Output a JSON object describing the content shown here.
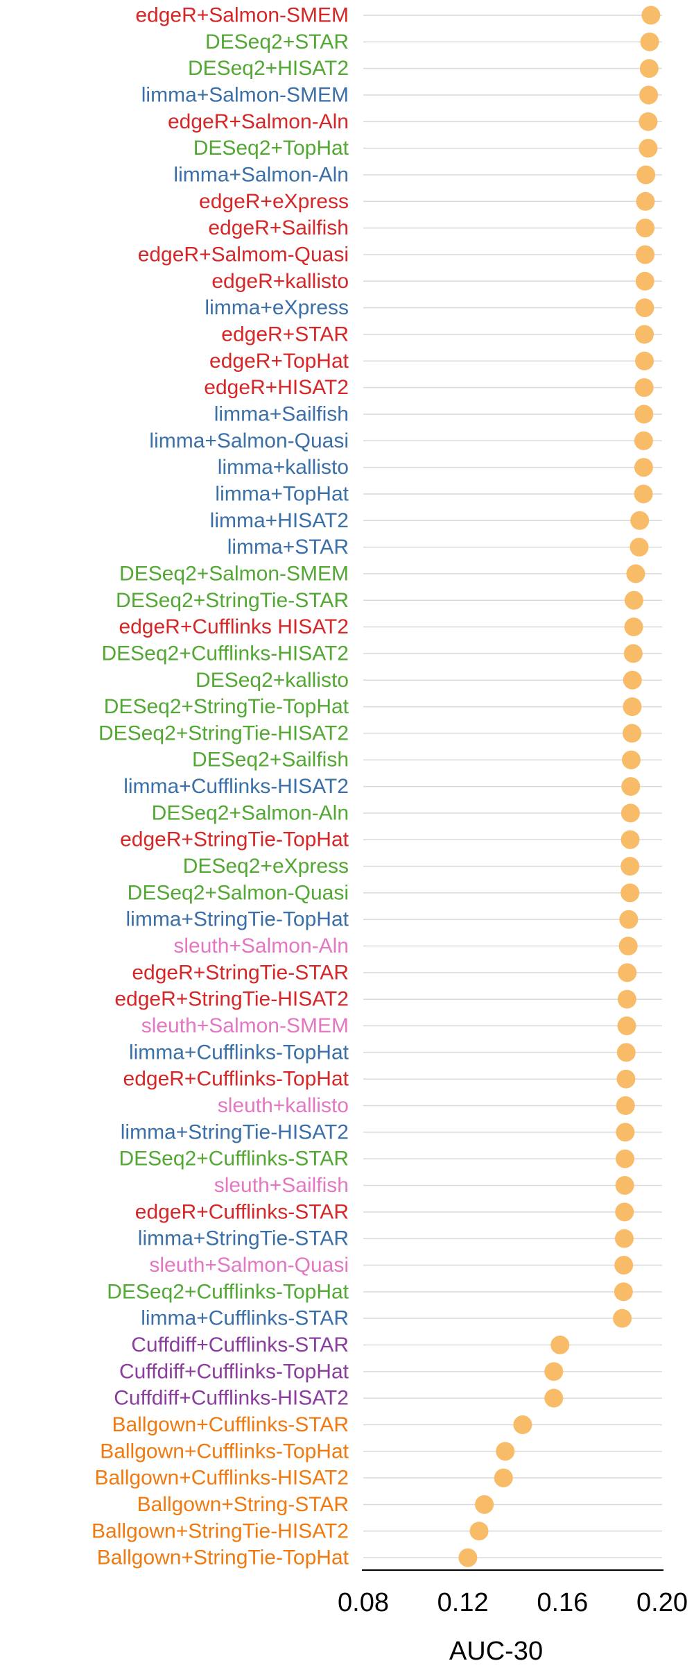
{
  "chart_data": {
    "type": "scatter",
    "title": "",
    "xlabel": "AUC-30",
    "ylabel": "",
    "xlim": [
      0.08,
      0.2
    ],
    "xticks": [
      "0.08",
      "0.12",
      "0.16",
      "0.20"
    ],
    "grid": "horizontal",
    "marker_color": "#F8BB68",
    "group_colors": {
      "edgeR": "#D62728",
      "DESeq2": "#52A833",
      "limma": "#3A6FA8",
      "sleuth": "#E377C2",
      "Cuffdiff": "#8A3D9C",
      "Ballgown": "#F07A10"
    },
    "points": [
      {
        "label": "edgeR+Salmon-SMEM",
        "group": "edgeR",
        "value": 0.1955
      },
      {
        "label": "DESeq2+STAR",
        "group": "DESeq2",
        "value": 0.195
      },
      {
        "label": "DESeq2+HISAT2",
        "group": "DESeq2",
        "value": 0.1948
      },
      {
        "label": "limma+Salmon-SMEM",
        "group": "limma",
        "value": 0.1946
      },
      {
        "label": "edgeR+Salmon-Aln",
        "group": "edgeR",
        "value": 0.1944
      },
      {
        "label": "DESeq2+TopHat",
        "group": "DESeq2",
        "value": 0.1944
      },
      {
        "label": "limma+Salmon-Aln",
        "group": "limma",
        "value": 0.1935
      },
      {
        "label": "edgeR+eXpress",
        "group": "edgeR",
        "value": 0.1933
      },
      {
        "label": "edgeR+Sailfish",
        "group": "edgeR",
        "value": 0.1932
      },
      {
        "label": "edgeR+Salmom-Quasi",
        "group": "edgeR",
        "value": 0.1932
      },
      {
        "label": "edgeR+kallisto",
        "group": "edgeR",
        "value": 0.1931
      },
      {
        "label": "limma+eXpress",
        "group": "limma",
        "value": 0.193
      },
      {
        "label": "edgeR+STAR",
        "group": "edgeR",
        "value": 0.1929
      },
      {
        "label": "edgeR+TopHat",
        "group": "edgeR",
        "value": 0.1929
      },
      {
        "label": "edgeR+HISAT2",
        "group": "edgeR",
        "value": 0.1928
      },
      {
        "label": "limma+Sailfish",
        "group": "limma",
        "value": 0.1927
      },
      {
        "label": "limma+Salmon-Quasi",
        "group": "limma",
        "value": 0.1926
      },
      {
        "label": "limma+kallisto",
        "group": "limma",
        "value": 0.1926
      },
      {
        "label": "limma+TopHat",
        "group": "limma",
        "value": 0.1925
      },
      {
        "label": "limma+HISAT2",
        "group": "limma",
        "value": 0.191
      },
      {
        "label": "limma+STAR",
        "group": "limma",
        "value": 0.1908
      },
      {
        "label": "DESeq2+Salmon-SMEM",
        "group": "DESeq2",
        "value": 0.1894
      },
      {
        "label": "DESeq2+StringTie-STAR",
        "group": "DESeq2",
        "value": 0.1887
      },
      {
        "label": "edgeR+Cufflinks HISAT2",
        "group": "edgeR",
        "value": 0.1886
      },
      {
        "label": "DESeq2+Cufflinks-HISAT2",
        "group": "DESeq2",
        "value": 0.1884
      },
      {
        "label": "DESeq2+kallisto",
        "group": "DESeq2",
        "value": 0.1881
      },
      {
        "label": "DESeq2+StringTie-TopHat",
        "group": "DESeq2",
        "value": 0.188
      },
      {
        "label": "DESeq2+StringTie-HISAT2",
        "group": "DESeq2",
        "value": 0.1879
      },
      {
        "label": "DESeq2+Sailfish",
        "group": "DESeq2",
        "value": 0.1876
      },
      {
        "label": "limma+Cufflinks-HISAT2",
        "group": "limma",
        "value": 0.1874
      },
      {
        "label": "DESeq2+Salmon-Aln",
        "group": "DESeq2",
        "value": 0.1873
      },
      {
        "label": "edgeR+StringTie-TopHat",
        "group": "edgeR",
        "value": 0.1872
      },
      {
        "label": "DESeq2+eXpress",
        "group": "DESeq2",
        "value": 0.1871
      },
      {
        "label": "DESeq2+Salmon-Quasi",
        "group": "DESeq2",
        "value": 0.1871
      },
      {
        "label": "limma+StringTie-TopHat",
        "group": "limma",
        "value": 0.1866
      },
      {
        "label": "sleuth+Salmon-Aln",
        "group": "sleuth",
        "value": 0.1864
      },
      {
        "label": "edgeR+StringTie-STAR",
        "group": "edgeR",
        "value": 0.186
      },
      {
        "label": "edgeR+StringTie-HISAT2",
        "group": "edgeR",
        "value": 0.1859
      },
      {
        "label": "sleuth+Salmon-SMEM",
        "group": "sleuth",
        "value": 0.1858
      },
      {
        "label": "limma+Cufflinks-TopHat",
        "group": "limma",
        "value": 0.1856
      },
      {
        "label": "edgeR+Cufflinks-TopHat",
        "group": "edgeR",
        "value": 0.1855
      },
      {
        "label": "sleuth+kallisto",
        "group": "sleuth",
        "value": 0.1853
      },
      {
        "label": "limma+StringTie-HISAT2",
        "group": "limma",
        "value": 0.1852
      },
      {
        "label": "DESeq2+Cufflinks-STAR",
        "group": "DESeq2",
        "value": 0.1851
      },
      {
        "label": "sleuth+Sailfish",
        "group": "sleuth",
        "value": 0.185
      },
      {
        "label": "edgeR+Cufflinks-STAR",
        "group": "edgeR",
        "value": 0.1849
      },
      {
        "label": "limma+StringTie-STAR",
        "group": "limma",
        "value": 0.1848
      },
      {
        "label": "sleuth+Salmon-Quasi",
        "group": "sleuth",
        "value": 0.1846
      },
      {
        "label": "DESeq2+Cufflinks-TopHat",
        "group": "DESeq2",
        "value": 0.1845
      },
      {
        "label": "limma+Cufflinks-STAR",
        "group": "limma",
        "value": 0.184
      },
      {
        "label": "Cuffdiff+Cufflinks-STAR",
        "group": "Cuffdiff",
        "value": 0.159
      },
      {
        "label": "Cuffdiff+Cufflinks-TopHat",
        "group": "Cuffdiff",
        "value": 0.1565
      },
      {
        "label": "Cuffdiff+Cufflinks-HISAT2",
        "group": "Cuffdiff",
        "value": 0.1565
      },
      {
        "label": "Ballgown+Cufflinks-STAR",
        "group": "Ballgown",
        "value": 0.144
      },
      {
        "label": "Ballgown+Cufflinks-TopHat",
        "group": "Ballgown",
        "value": 0.137
      },
      {
        "label": "Ballgown+Cufflinks-HISAT2",
        "group": "Ballgown",
        "value": 0.1363
      },
      {
        "label": "Ballgown+String-STAR",
        "group": "Ballgown",
        "value": 0.1286
      },
      {
        "label": "Ballgown+StringTie-HISAT2",
        "group": "Ballgown",
        "value": 0.1265
      },
      {
        "label": "Ballgown+StringTie-TopHat",
        "group": "Ballgown",
        "value": 0.122
      }
    ]
  }
}
